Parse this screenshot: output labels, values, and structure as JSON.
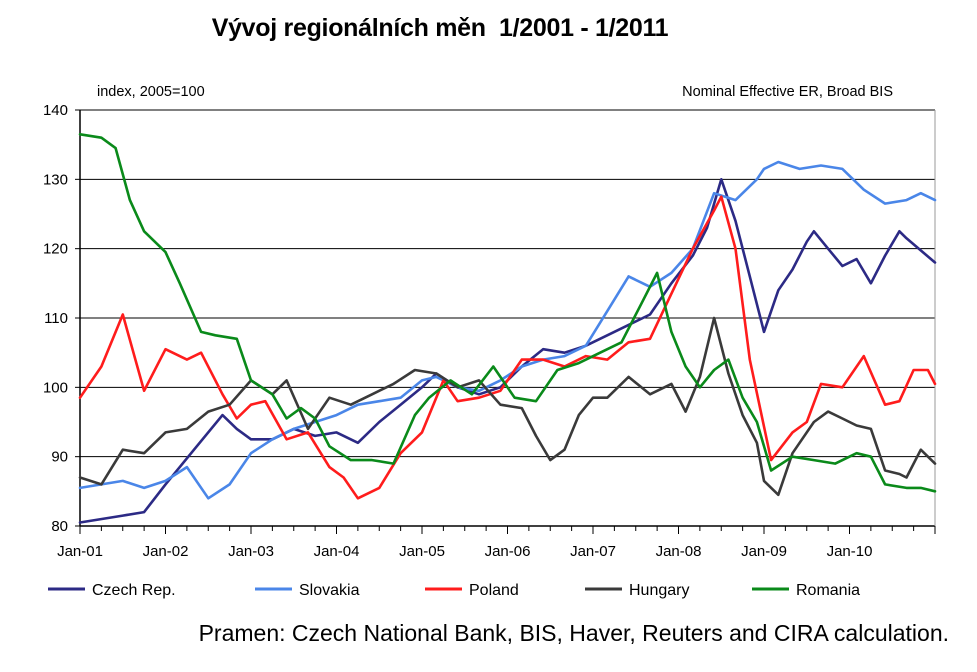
{
  "chart_data": {
    "type": "line",
    "title": "Vývoj regionálních měn  1/2001 - 1/2011",
    "ylabel_note": "index, 2005=100",
    "top_right_note": "Nominal Effective ER, Broad BIS",
    "source": "Pramen: Czech National Bank, BIS, Haver, Reuters and CIRA calculation.",
    "x_start": "2001-01",
    "x_end": "2011-01",
    "x_ticks": [
      "Jan-01",
      "Jan-02",
      "Jan-03",
      "Jan-04",
      "Jan-05",
      "Jan-06",
      "Jan-07",
      "Jan-08",
      "Jan-09",
      "Jan-10"
    ],
    "ylim": [
      80,
      140
    ],
    "y_ticks": [
      80,
      90,
      100,
      110,
      120,
      130,
      140
    ],
    "grid": true,
    "legend_position": "bottom",
    "series": [
      {
        "name": "Czech Rep.",
        "color": "#2c2a85",
        "points": [
          [
            "2001-01",
            80.5
          ],
          [
            "2001-07",
            81.5
          ],
          [
            "2001-10",
            82.0
          ],
          [
            "2002-01",
            86.0
          ],
          [
            "2002-05",
            91.0
          ],
          [
            "2002-09",
            96.0
          ],
          [
            "2002-11",
            94.0
          ],
          [
            "2003-01",
            92.5
          ],
          [
            "2003-04",
            92.5
          ],
          [
            "2003-07",
            94.0
          ],
          [
            "2003-10",
            93.0
          ],
          [
            "2004-01",
            93.5
          ],
          [
            "2004-04",
            92.0
          ],
          [
            "2004-07",
            95.0
          ],
          [
            "2004-10",
            97.5
          ],
          [
            "2005-01",
            100.0
          ],
          [
            "2005-03",
            102.0
          ],
          [
            "2005-06",
            100.0
          ],
          [
            "2005-09",
            99.0
          ],
          [
            "2005-12",
            100.0
          ],
          [
            "2006-03",
            103.0
          ],
          [
            "2006-06",
            105.5
          ],
          [
            "2006-09",
            105.0
          ],
          [
            "2006-12",
            106.0
          ],
          [
            "2007-03",
            107.5
          ],
          [
            "2007-06",
            109.0
          ],
          [
            "2007-09",
            110.5
          ],
          [
            "2007-12",
            115.0
          ],
          [
            "2008-03",
            119.0
          ],
          [
            "2008-05",
            123.0
          ],
          [
            "2008-07",
            130.0
          ],
          [
            "2008-09",
            124.0
          ],
          [
            "2008-11",
            116.0
          ],
          [
            "2009-01",
            108.0
          ],
          [
            "2009-03",
            114.0
          ],
          [
            "2009-05",
            117.0
          ],
          [
            "2009-07",
            121.0
          ],
          [
            "2009-08",
            122.5
          ],
          [
            "2009-10",
            120.0
          ],
          [
            "2009-12",
            117.5
          ],
          [
            "2010-02",
            118.5
          ],
          [
            "2010-04",
            115.0
          ],
          [
            "2010-06",
            119.0
          ],
          [
            "2010-08",
            122.5
          ],
          [
            "2010-09",
            121.5
          ],
          [
            "2011-01",
            118.0
          ]
        ]
      },
      {
        "name": "Slovakia",
        "color": "#4a86e8",
        "points": [
          [
            "2001-01",
            85.5
          ],
          [
            "2001-04",
            86.0
          ],
          [
            "2001-07",
            86.5
          ],
          [
            "2001-10",
            85.5
          ],
          [
            "2002-01",
            86.5
          ],
          [
            "2002-04",
            88.5
          ],
          [
            "2002-07",
            84.0
          ],
          [
            "2002-10",
            86.0
          ],
          [
            "2003-01",
            90.5
          ],
          [
            "2003-04",
            92.5
          ],
          [
            "2003-07",
            94.0
          ],
          [
            "2003-10",
            95.0
          ],
          [
            "2004-01",
            96.0
          ],
          [
            "2004-04",
            97.5
          ],
          [
            "2004-07",
            98.0
          ],
          [
            "2004-10",
            98.5
          ],
          [
            "2005-01",
            101.0
          ],
          [
            "2005-03",
            101.5
          ],
          [
            "2005-06",
            100.0
          ],
          [
            "2005-09",
            99.5
          ],
          [
            "2005-12",
            101.0
          ],
          [
            "2006-03",
            103.0
          ],
          [
            "2006-06",
            104.0
          ],
          [
            "2006-09",
            104.5
          ],
          [
            "2006-12",
            106.0
          ],
          [
            "2007-03",
            111.0
          ],
          [
            "2007-06",
            116.0
          ],
          [
            "2007-09",
            114.5
          ],
          [
            "2007-12",
            116.5
          ],
          [
            "2008-03",
            120.0
          ],
          [
            "2008-06",
            128.0
          ],
          [
            "2008-09",
            127.0
          ],
          [
            "2008-12",
            130.0
          ],
          [
            "2009-01",
            131.5
          ],
          [
            "2009-03",
            132.5
          ],
          [
            "2009-06",
            131.5
          ],
          [
            "2009-09",
            132.0
          ],
          [
            "2009-12",
            131.5
          ],
          [
            "2010-03",
            128.5
          ],
          [
            "2010-06",
            126.5
          ],
          [
            "2010-09",
            127.0
          ],
          [
            "2010-11",
            128.0
          ],
          [
            "2011-01",
            127.0
          ]
        ]
      },
      {
        "name": "Poland",
        "color": "#ff1c1c",
        "points": [
          [
            "2001-01",
            98.5
          ],
          [
            "2001-04",
            103.0
          ],
          [
            "2001-07",
            110.5
          ],
          [
            "2001-10",
            99.5
          ],
          [
            "2002-01",
            105.5
          ],
          [
            "2002-04",
            104.0
          ],
          [
            "2002-06",
            105.0
          ],
          [
            "2002-09",
            99.0
          ],
          [
            "2002-11",
            95.5
          ],
          [
            "2003-01",
            97.5
          ],
          [
            "2003-03",
            98.0
          ],
          [
            "2003-06",
            92.5
          ],
          [
            "2003-09",
            93.5
          ],
          [
            "2003-12",
            88.5
          ],
          [
            "2004-02",
            87.0
          ],
          [
            "2004-04",
            84.0
          ],
          [
            "2004-07",
            85.5
          ],
          [
            "2004-10",
            90.5
          ],
          [
            "2005-01",
            93.5
          ],
          [
            "2005-04",
            101.0
          ],
          [
            "2005-06",
            98.0
          ],
          [
            "2005-09",
            98.5
          ],
          [
            "2005-12",
            99.5
          ],
          [
            "2006-03",
            104.0
          ],
          [
            "2006-06",
            104.0
          ],
          [
            "2006-09",
            103.0
          ],
          [
            "2006-12",
            104.5
          ],
          [
            "2007-03",
            104.0
          ],
          [
            "2007-06",
            106.5
          ],
          [
            "2007-09",
            107.0
          ],
          [
            "2007-12",
            113.5
          ],
          [
            "2008-03",
            120.0
          ],
          [
            "2008-06",
            125.5
          ],
          [
            "2008-07",
            127.5
          ],
          [
            "2008-09",
            120.0
          ],
          [
            "2008-11",
            104.0
          ],
          [
            "2009-02",
            89.5
          ],
          [
            "2009-05",
            93.5
          ],
          [
            "2009-07",
            95.0
          ],
          [
            "2009-09",
            100.5
          ],
          [
            "2009-12",
            100.0
          ],
          [
            "2010-03",
            104.5
          ],
          [
            "2010-06",
            97.5
          ],
          [
            "2010-08",
            98.0
          ],
          [
            "2010-10",
            102.5
          ],
          [
            "2010-12",
            102.5
          ],
          [
            "2011-01",
            100.5
          ]
        ]
      },
      {
        "name": "Hungary",
        "color": "#3a3a3a",
        "points": [
          [
            "2001-01",
            87.0
          ],
          [
            "2001-04",
            86.0
          ],
          [
            "2001-07",
            91.0
          ],
          [
            "2001-10",
            90.5
          ],
          [
            "2002-01",
            93.5
          ],
          [
            "2002-04",
            94.0
          ],
          [
            "2002-07",
            96.5
          ],
          [
            "2002-10",
            97.5
          ],
          [
            "2003-01",
            101.0
          ],
          [
            "2003-04",
            99.0
          ],
          [
            "2003-06",
            101.0
          ],
          [
            "2003-09",
            94.0
          ],
          [
            "2003-12",
            98.5
          ],
          [
            "2004-03",
            97.5
          ],
          [
            "2004-06",
            99.0
          ],
          [
            "2004-09",
            100.5
          ],
          [
            "2004-12",
            102.5
          ],
          [
            "2005-03",
            102.0
          ],
          [
            "2005-06",
            100.0
          ],
          [
            "2005-09",
            101.0
          ],
          [
            "2005-12",
            97.5
          ],
          [
            "2006-03",
            97.0
          ],
          [
            "2006-05",
            93.0
          ],
          [
            "2006-07",
            89.5
          ],
          [
            "2006-09",
            91.0
          ],
          [
            "2006-11",
            96.0
          ],
          [
            "2007-01",
            98.5
          ],
          [
            "2007-03",
            98.5
          ],
          [
            "2007-06",
            101.5
          ],
          [
            "2007-09",
            99.0
          ],
          [
            "2007-12",
            100.5
          ],
          [
            "2008-02",
            96.5
          ],
          [
            "2008-04",
            101.5
          ],
          [
            "2008-06",
            110.0
          ],
          [
            "2008-08",
            102.0
          ],
          [
            "2008-10",
            96.0
          ],
          [
            "2008-12",
            92.0
          ],
          [
            "2009-01",
            86.5
          ],
          [
            "2009-03",
            84.5
          ],
          [
            "2009-05",
            90.5
          ],
          [
            "2009-08",
            95.0
          ],
          [
            "2009-10",
            96.5
          ],
          [
            "2009-12",
            95.5
          ],
          [
            "2010-02",
            94.5
          ],
          [
            "2010-04",
            94.0
          ],
          [
            "2010-06",
            88.0
          ],
          [
            "2010-08",
            87.5
          ],
          [
            "2010-09",
            87.0
          ],
          [
            "2010-11",
            91.0
          ],
          [
            "2011-01",
            89.0
          ]
        ]
      },
      {
        "name": "Romania",
        "color": "#0a8a1a",
        "points": [
          [
            "2001-01",
            136.5
          ],
          [
            "2001-04",
            136.0
          ],
          [
            "2001-06",
            134.5
          ],
          [
            "2001-08",
            127.0
          ],
          [
            "2001-10",
            122.5
          ],
          [
            "2001-12",
            120.5
          ],
          [
            "2002-01",
            119.5
          ],
          [
            "2002-03",
            115.0
          ],
          [
            "2002-06",
            108.0
          ],
          [
            "2002-08",
            107.5
          ],
          [
            "2002-11",
            107.0
          ],
          [
            "2003-01",
            101.0
          ],
          [
            "2003-04",
            99.0
          ],
          [
            "2003-06",
            95.5
          ],
          [
            "2003-08",
            97.0
          ],
          [
            "2003-10",
            95.5
          ],
          [
            "2003-12",
            91.5
          ],
          [
            "2004-03",
            89.5
          ],
          [
            "2004-06",
            89.5
          ],
          [
            "2004-09",
            89.0
          ],
          [
            "2004-12",
            96.0
          ],
          [
            "2005-02",
            98.5
          ],
          [
            "2005-05",
            101.0
          ],
          [
            "2005-08",
            99.0
          ],
          [
            "2005-11",
            103.0
          ],
          [
            "2006-02",
            98.5
          ],
          [
            "2006-05",
            98.0
          ],
          [
            "2006-08",
            102.5
          ],
          [
            "2006-11",
            103.5
          ],
          [
            "2007-02",
            105.0
          ],
          [
            "2007-05",
            106.5
          ],
          [
            "2007-08",
            112.5
          ],
          [
            "2007-10",
            116.5
          ],
          [
            "2007-12",
            108.0
          ],
          [
            "2008-02",
            103.0
          ],
          [
            "2008-04",
            100.0
          ],
          [
            "2008-06",
            102.5
          ],
          [
            "2008-08",
            104.0
          ],
          [
            "2008-10",
            98.5
          ],
          [
            "2008-12",
            95.0
          ],
          [
            "2009-02",
            88.0
          ],
          [
            "2009-05",
            90.0
          ],
          [
            "2009-08",
            89.5
          ],
          [
            "2009-11",
            89.0
          ],
          [
            "2010-02",
            90.5
          ],
          [
            "2010-04",
            90.0
          ],
          [
            "2010-06",
            86.0
          ],
          [
            "2010-09",
            85.5
          ],
          [
            "2010-11",
            85.5
          ],
          [
            "2011-01",
            85.0
          ]
        ]
      }
    ]
  }
}
